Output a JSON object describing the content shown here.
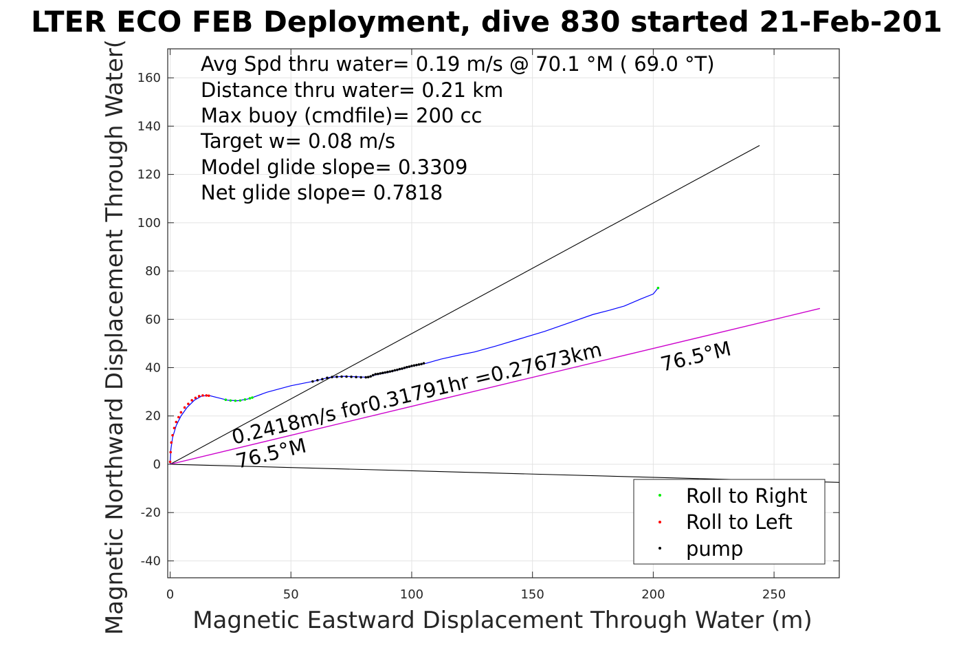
{
  "chart_data": {
    "type": "line",
    "title": "LTER ECO FEB Deployment, dive 830 started 21-Feb-201",
    "xlabel": "Magnetic Eastward Displacement Through Water (m)",
    "ylabel": "Magnetic Northward Displacement Through Water(",
    "xlim": [
      -1,
      277
    ],
    "ylim": [
      -47,
      172
    ],
    "xticks": [
      0,
      50,
      100,
      150,
      200,
      250
    ],
    "xtick_labels": [
      "0",
      "50",
      "100",
      "150",
      "200",
      "250"
    ],
    "yticks": [
      -40,
      -20,
      0,
      20,
      40,
      60,
      80,
      100,
      120,
      140,
      160
    ],
    "ytick_labels": [
      "-40",
      "-20",
      "0",
      "20",
      "40",
      "60",
      "80",
      "100",
      "120",
      "140",
      "160"
    ],
    "grid": true,
    "info_lines": [
      "Avg Spd thru water=  0.19 m/s @  70.1 °M ( 69.0 °T)",
      "Distance thru water=  0.21 km",
      "Max buoy (cmdfile)= 200 cc",
      "Target w= 0.08 m/s",
      "Model glide slope= 0.3309",
      "Net glide slope= 0.7818"
    ],
    "annotations": {
      "speed_text": "0.2418m/s for0.31791hr =0.27673km",
      "heading_near": "76.5°M",
      "heading_far": "76.5°M"
    },
    "reference_lines": [
      {
        "color": "#000000",
        "points": [
          [
            0,
            0
          ],
          [
            244,
            132
          ]
        ]
      },
      {
        "color": "#000000",
        "points": [
          [
            0,
            0
          ],
          [
            277,
            -7.5
          ]
        ]
      },
      {
        "color": "#cc00cc",
        "points": [
          [
            0,
            0
          ],
          [
            269,
            64.5
          ]
        ]
      }
    ],
    "track": {
      "color": "#0000ff",
      "points": [
        [
          0,
          0
        ],
        [
          0.3,
          6
        ],
        [
          1,
          11
        ],
        [
          2.5,
          16
        ],
        [
          4.5,
          20
        ],
        [
          7,
          23.5
        ],
        [
          10,
          26.5
        ],
        [
          13,
          28.2
        ],
        [
          16,
          28.5
        ],
        [
          20,
          27.5
        ],
        [
          24,
          26.5
        ],
        [
          28,
          26.3
        ],
        [
          32,
          27
        ],
        [
          34,
          27.6
        ],
        [
          40,
          29.8
        ],
        [
          50,
          32.5
        ],
        [
          60,
          34.5
        ],
        [
          66,
          36
        ],
        [
          72,
          36.4
        ],
        [
          78,
          36.2
        ],
        [
          82,
          36
        ],
        [
          85,
          37
        ],
        [
          90,
          38
        ],
        [
          95,
          39.2
        ],
        [
          100,
          40.6
        ],
        [
          106,
          41.8
        ],
        [
          112,
          43.5
        ],
        [
          120,
          45.3
        ],
        [
          126,
          46.5
        ],
        [
          135,
          49
        ],
        [
          145,
          52
        ],
        [
          155,
          55
        ],
        [
          165,
          58.5
        ],
        [
          175,
          62
        ],
        [
          182,
          63.8
        ],
        [
          188,
          65.5
        ],
        [
          195,
          68.5
        ],
        [
          200,
          70.5
        ],
        [
          202,
          73
        ]
      ]
    },
    "series": [
      {
        "name": "Roll to Right",
        "color": "#00ee00",
        "x": [
          23,
          25,
          27,
          29,
          31,
          33,
          34,
          202
        ],
        "y": [
          26.7,
          26.4,
          26.3,
          26.4,
          26.8,
          27.3,
          27.6,
          73
        ]
      },
      {
        "name": "Roll to Left",
        "color": "#ff0000",
        "x": [
          0,
          0.2,
          0.5,
          1,
          1.7,
          2.5,
          3.5,
          4.5,
          6,
          7.5,
          9,
          10.5,
          12,
          13.5,
          15,
          16
        ],
        "y": [
          1,
          5,
          9,
          12,
          15,
          17.5,
          19.5,
          21.5,
          23.5,
          25,
          26.5,
          27.5,
          28.2,
          28.5,
          28.5,
          28.4
        ]
      },
      {
        "name": "pump",
        "color": "#000000",
        "x": [
          59,
          61,
          63,
          65,
          67,
          69,
          71,
          73,
          75,
          77,
          79,
          81,
          82,
          83,
          84,
          85,
          86,
          87,
          88,
          89,
          90,
          91,
          92,
          93,
          94,
          95,
          96,
          97,
          98,
          99,
          100,
          101,
          102,
          103,
          104,
          105
        ],
        "y": [
          34.3,
          34.8,
          35.2,
          35.8,
          36.1,
          36.2,
          36.3,
          36.3,
          36.2,
          36.1,
          36,
          36,
          36.1,
          36.4,
          36.9,
          37.3,
          37.4,
          37.6,
          37.8,
          38,
          38.2,
          38.4,
          38.6,
          38.9,
          39.1,
          39.4,
          39.6,
          39.9,
          40.2,
          40.4,
          40.7,
          40.9,
          41.1,
          41.3,
          41.5,
          41.8
        ]
      }
    ],
    "legend": {
      "position": "bottom-right",
      "entries": [
        "Roll to Right",
        "Roll to Left",
        "pump"
      ]
    }
  }
}
